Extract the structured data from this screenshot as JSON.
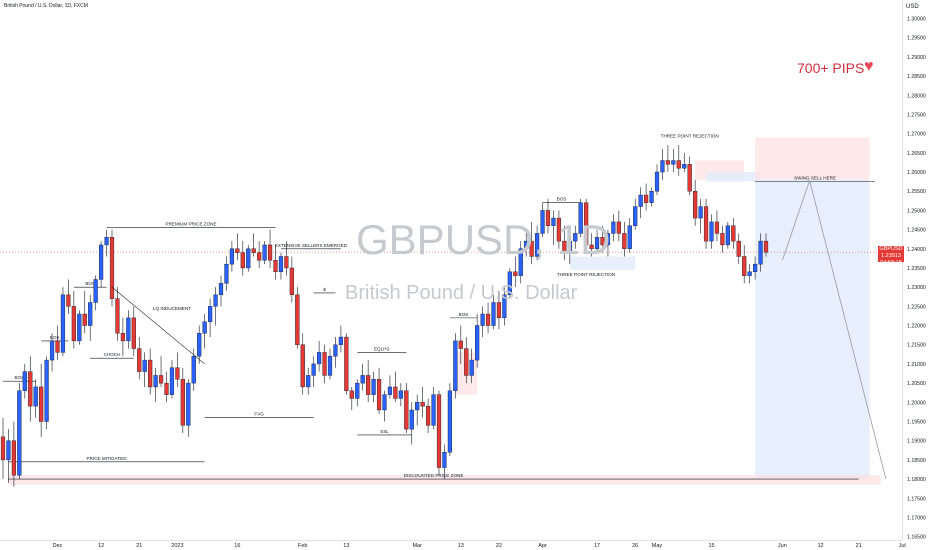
{
  "header": {
    "title": "British Pound / U.S. Dollar, 1D, FXCM",
    "currency": "USD"
  },
  "watermark": {
    "symbol": "GBPUSD, 1D",
    "description": "British Pound / U.S. Dollar"
  },
  "promo": {
    "text": "700+ PIPS",
    "icon": "heart-icon"
  },
  "price_tag": {
    "symbol": "GBPUSD",
    "price": "1.23913",
    "countdown": "04:58:18"
  },
  "colors": {
    "up": "#2962ff",
    "down": "#e53935",
    "annotation": "#131722",
    "supply_zone": "#fde4e6",
    "demand_zone": "#e3ecfb"
  },
  "chart_data": {
    "type": "candlestick",
    "title": "British Pound / U.S. Dollar, 1D, FXCM",
    "y_unit": "USD",
    "ylim": [
      1.16318,
      1.30337
    ],
    "y_ticks": [
      "1.30000",
      "1.29500",
      "1.29000",
      "1.28500",
      "1.28000",
      "1.27500",
      "1.27000",
      "1.26500",
      "1.26000",
      "1.25500",
      "1.25000",
      "1.24500",
      "1.24000",
      "1.23500",
      "1.23000",
      "1.22500",
      "1.22000",
      "1.21500",
      "1.21000",
      "1.20500",
      "1.20000",
      "1.19500",
      "1.19000",
      "1.18500",
      "1.18000",
      "1.17500",
      "1.17000",
      "1.16500"
    ],
    "x_ticks": [
      {
        "label": "Dec",
        "bar": 10
      },
      {
        "label": "12",
        "bar": 18
      },
      {
        "label": "21",
        "bar": 25
      },
      {
        "label": "2023",
        "bar": 32
      },
      {
        "label": "16",
        "bar": 43
      },
      {
        "label": "Feb",
        "bar": 55
      },
      {
        "label": "13",
        "bar": 63
      },
      {
        "label": "Mar",
        "bar": 76
      },
      {
        "label": "13",
        "bar": 84
      },
      {
        "label": "22",
        "bar": 91
      },
      {
        "label": "Apr",
        "bar": 99
      },
      {
        "label": "17",
        "bar": 109
      },
      {
        "label": "26",
        "bar": 116
      },
      {
        "label": "May",
        "bar": 120
      },
      {
        "label": "15",
        "bar": 130
      },
      {
        "label": "Jun",
        "bar": 143
      },
      {
        "label": "12",
        "bar": 150
      },
      {
        "label": "21",
        "bar": 157
      },
      {
        "label": "Jul",
        "bar": 165
      }
    ],
    "current_price": 1.23913,
    "candles": [
      [
        1.191,
        1.196,
        1.18,
        1.185
      ],
      [
        1.185,
        1.193,
        1.179,
        1.19
      ],
      [
        1.19,
        1.195,
        1.178,
        1.181
      ],
      [
        1.181,
        1.205,
        1.18,
        1.203
      ],
      [
        1.203,
        1.21,
        1.201,
        1.208
      ],
      [
        1.208,
        1.212,
        1.195,
        1.199
      ],
      [
        1.199,
        1.206,
        1.196,
        1.204
      ],
      [
        1.204,
        1.21,
        1.191,
        1.195
      ],
      [
        1.195,
        1.212,
        1.193,
        1.211
      ],
      [
        1.211,
        1.218,
        1.208,
        1.216
      ],
      [
        1.216,
        1.22,
        1.211,
        1.213
      ],
      [
        1.213,
        1.23,
        1.212,
        1.228
      ],
      [
        1.228,
        1.232,
        1.223,
        1.225
      ],
      [
        1.225,
        1.229,
        1.214,
        1.216
      ],
      [
        1.216,
        1.224,
        1.215,
        1.223
      ],
      [
        1.223,
        1.229,
        1.218,
        1.22
      ],
      [
        1.22,
        1.228,
        1.216,
        1.226
      ],
      [
        1.226,
        1.233,
        1.224,
        1.232
      ],
      [
        1.232,
        1.242,
        1.23,
        1.241
      ],
      [
        1.241,
        1.245,
        1.238,
        1.243
      ],
      [
        1.243,
        1.245,
        1.225,
        1.227
      ],
      [
        1.227,
        1.23,
        1.216,
        1.218
      ],
      [
        1.218,
        1.222,
        1.212,
        1.216
      ],
      [
        1.216,
        1.224,
        1.214,
        1.222
      ],
      [
        1.222,
        1.225,
        1.212,
        1.214
      ],
      [
        1.214,
        1.217,
        1.206,
        1.208
      ],
      [
        1.208,
        1.213,
        1.204,
        1.211
      ],
      [
        1.211,
        1.214,
        1.202,
        1.204
      ],
      [
        1.204,
        1.209,
        1.2,
        1.207
      ],
      [
        1.207,
        1.212,
        1.204,
        1.205
      ],
      [
        1.205,
        1.208,
        1.2,
        1.202
      ],
      [
        1.202,
        1.211,
        1.201,
        1.209
      ],
      [
        1.209,
        1.213,
        1.204,
        1.206
      ],
      [
        1.206,
        1.209,
        1.192,
        1.194
      ],
      [
        1.194,
        1.206,
        1.191,
        1.205
      ],
      [
        1.205,
        1.214,
        1.203,
        1.212
      ],
      [
        1.212,
        1.22,
        1.21,
        1.218
      ],
      [
        1.218,
        1.223,
        1.214,
        1.221
      ],
      [
        1.221,
        1.227,
        1.217,
        1.225
      ],
      [
        1.225,
        1.23,
        1.22,
        1.228
      ],
      [
        1.228,
        1.233,
        1.225,
        1.231
      ],
      [
        1.231,
        1.238,
        1.229,
        1.236
      ],
      [
        1.236,
        1.242,
        1.234,
        1.24
      ],
      [
        1.24,
        1.244,
        1.237,
        1.239
      ],
      [
        1.239,
        1.242,
        1.233,
        1.235
      ],
      [
        1.235,
        1.241,
        1.234,
        1.24
      ],
      [
        1.24,
        1.244,
        1.238,
        1.239
      ],
      [
        1.239,
        1.242,
        1.235,
        1.237
      ],
      [
        1.237,
        1.242,
        1.236,
        1.241
      ],
      [
        1.241,
        1.245,
        1.235,
        1.237
      ],
      [
        1.237,
        1.241,
        1.232,
        1.234
      ],
      [
        1.234,
        1.239,
        1.232,
        1.238
      ],
      [
        1.238,
        1.242,
        1.233,
        1.235
      ],
      [
        1.235,
        1.238,
        1.226,
        1.228
      ],
      [
        1.228,
        1.23,
        1.214,
        1.215
      ],
      [
        1.215,
        1.218,
        1.202,
        1.204
      ],
      [
        1.204,
        1.209,
        1.202,
        1.207
      ],
      [
        1.207,
        1.212,
        1.204,
        1.21
      ],
      [
        1.21,
        1.216,
        1.208,
        1.213
      ],
      [
        1.213,
        1.215,
        1.205,
        1.207
      ],
      [
        1.207,
        1.214,
        1.206,
        1.212
      ],
      [
        1.212,
        1.217,
        1.209,
        1.215
      ],
      [
        1.215,
        1.22,
        1.213,
        1.217
      ],
      [
        1.217,
        1.218,
        1.202,
        1.203
      ],
      [
        1.203,
        1.204,
        1.198,
        1.201
      ],
      [
        1.201,
        1.206,
        1.199,
        1.205
      ],
      [
        1.205,
        1.21,
        1.203,
        1.207
      ],
      [
        1.207,
        1.211,
        1.2,
        1.202
      ],
      [
        1.202,
        1.208,
        1.2,
        1.206
      ],
      [
        1.206,
        1.209,
        1.197,
        1.198
      ],
      [
        1.198,
        1.203,
        1.195,
        1.202
      ],
      [
        1.202,
        1.207,
        1.201,
        1.204
      ],
      [
        1.204,
        1.208,
        1.2,
        1.201
      ],
      [
        1.201,
        1.205,
        1.199,
        1.203
      ],
      [
        1.203,
        1.205,
        1.192,
        1.193
      ],
      [
        1.193,
        1.2,
        1.189,
        1.198
      ],
      [
        1.198,
        1.202,
        1.194,
        1.2
      ],
      [
        1.2,
        1.204,
        1.196,
        1.199
      ],
      [
        1.199,
        1.201,
        1.192,
        1.194
      ],
      [
        1.194,
        1.204,
        1.193,
        1.202
      ],
      [
        1.202,
        1.203,
        1.181,
        1.183
      ],
      [
        1.183,
        1.189,
        1.18,
        1.187
      ],
      [
        1.187,
        1.205,
        1.186,
        1.203
      ],
      [
        1.203,
        1.218,
        1.201,
        1.216
      ],
      [
        1.216,
        1.22,
        1.21,
        1.214
      ],
      [
        1.214,
        1.217,
        1.205,
        1.207
      ],
      [
        1.207,
        1.214,
        1.205,
        1.211
      ],
      [
        1.211,
        1.223,
        1.209,
        1.22
      ],
      [
        1.22,
        1.225,
        1.217,
        1.223
      ],
      [
        1.223,
        1.226,
        1.218,
        1.22
      ],
      [
        1.22,
        1.228,
        1.219,
        1.226
      ],
      [
        1.226,
        1.229,
        1.219,
        1.222
      ],
      [
        1.222,
        1.23,
        1.22,
        1.228
      ],
      [
        1.228,
        1.235,
        1.227,
        1.234
      ],
      [
        1.234,
        1.238,
        1.23,
        1.233
      ],
      [
        1.233,
        1.242,
        1.231,
        1.24
      ],
      [
        1.24,
        1.245,
        1.238,
        1.242
      ],
      [
        1.242,
        1.247,
        1.236,
        1.238
      ],
      [
        1.238,
        1.246,
        1.237,
        1.244
      ],
      [
        1.244,
        1.252,
        1.243,
        1.25
      ],
      [
        1.25,
        1.253,
        1.244,
        1.246
      ],
      [
        1.246,
        1.25,
        1.241,
        1.248
      ],
      [
        1.248,
        1.25,
        1.24,
        1.242
      ],
      [
        1.242,
        1.246,
        1.237,
        1.239
      ],
      [
        1.239,
        1.243,
        1.236,
        1.242
      ],
      [
        1.242,
        1.246,
        1.24,
        1.244
      ],
      [
        1.244,
        1.253,
        1.243,
        1.252
      ],
      [
        1.252,
        1.253,
        1.24,
        1.241
      ],
      [
        1.241,
        1.244,
        1.238,
        1.24
      ],
      [
        1.24,
        1.245,
        1.239,
        1.243
      ],
      [
        1.243,
        1.246,
        1.239,
        1.241
      ],
      [
        1.241,
        1.245,
        1.238,
        1.244
      ],
      [
        1.244,
        1.249,
        1.242,
        1.247
      ],
      [
        1.247,
        1.25,
        1.242,
        1.244
      ],
      [
        1.244,
        1.247,
        1.238,
        1.24
      ],
      [
        1.24,
        1.248,
        1.239,
        1.246
      ],
      [
        1.246,
        1.253,
        1.245,
        1.251
      ],
      [
        1.251,
        1.256,
        1.248,
        1.254
      ],
      [
        1.254,
        1.257,
        1.25,
        1.252
      ],
      [
        1.252,
        1.256,
        1.251,
        1.255
      ],
      [
        1.255,
        1.262,
        1.254,
        1.26
      ],
      [
        1.26,
        1.266,
        1.258,
        1.263
      ],
      [
        1.263,
        1.267,
        1.26,
        1.262
      ],
      [
        1.262,
        1.266,
        1.26,
        1.263
      ],
      [
        1.263,
        1.267,
        1.259,
        1.261
      ],
      [
        1.261,
        1.265,
        1.26,
        1.262
      ],
      [
        1.262,
        1.264,
        1.254,
        1.255
      ],
      [
        1.255,
        1.258,
        1.246,
        1.248
      ],
      [
        1.248,
        1.253,
        1.244,
        1.251
      ],
      [
        1.251,
        1.253,
        1.24,
        1.242
      ],
      [
        1.242,
        1.249,
        1.24,
        1.247
      ],
      [
        1.247,
        1.25,
        1.242,
        1.244
      ],
      [
        1.244,
        1.246,
        1.239,
        1.241
      ],
      [
        1.241,
        1.247,
        1.24,
        1.246
      ],
      [
        1.246,
        1.248,
        1.24,
        1.242
      ],
      [
        1.242,
        1.244,
        1.236,
        1.238
      ],
      [
        1.238,
        1.241,
        1.231,
        1.233
      ],
      [
        1.233,
        1.236,
        1.231,
        1.234
      ],
      [
        1.234,
        1.238,
        1.232,
        1.236
      ],
      [
        1.236,
        1.244,
        1.234,
        1.242
      ],
      [
        1.242,
        1.244,
        1.238,
        1.2391
      ]
    ],
    "levels": [
      {
        "label": "BOS",
        "price": 1.2055,
        "from": 0,
        "to": 6
      },
      {
        "label": "BOS",
        "price": 1.216,
        "from": 7,
        "to": 12
      },
      {
        "label": "BOS",
        "price": 1.23,
        "from": 13,
        "to": 19
      },
      {
        "label": "CHOCH",
        "price": 1.2115,
        "from": 16,
        "to": 24
      },
      {
        "label": "PREMIUM PRICE ZONE",
        "price": 1.2455,
        "from": 19,
        "to": 50
      },
      {
        "label": "EXTENSIVE SELLERS EMERGED",
        "price": 1.24,
        "from": 51,
        "to": 62
      },
      {
        "label": "$",
        "price": 1.2285,
        "from": 57,
        "to": 61
      },
      {
        "label": "FVG",
        "price": 1.196,
        "from": 37,
        "to": 57
      },
      {
        "label": "EQLHS",
        "price": 1.213,
        "from": 65,
        "to": 74
      },
      {
        "label": "SSL",
        "price": 1.1915,
        "from": 65,
        "to": 75
      },
      {
        "label": "BOS",
        "price": 1.222,
        "from": 82,
        "to": 87
      },
      {
        "label": "BOS",
        "price": 1.252,
        "from": 99,
        "to": 106
      },
      {
        "label": "PRICE MITIGATED",
        "price": 1.1845,
        "from": 1,
        "to": 37
      },
      {
        "label": "DISCOUNTED PRICE ZONE",
        "price": 1.18,
        "from": 1,
        "to": 157
      },
      {
        "label": "SWING SELL HERE",
        "price": 1.2575,
        "from": 138,
        "to": 160
      }
    ],
    "annotations": [
      {
        "label": "LQ INDUCEMENT"
      },
      {
        "label": "THREE POINT REJECTION"
      },
      {
        "label": "THREE POINT REJECTION"
      },
      {
        "label": "SWING SELL HERE"
      }
    ],
    "zones": [
      {
        "kind": "supply",
        "top": 1.263,
        "bottom": 1.258,
        "from": 127,
        "to": 136
      },
      {
        "kind": "demand",
        "top": 1.26,
        "bottom": 1.2575,
        "from": 129,
        "to": 139
      },
      {
        "kind": "demand",
        "top": 1.238,
        "bottom": 1.2345,
        "from": 104,
        "to": 116
      },
      {
        "kind": "supply",
        "top": 1.213,
        "bottom": 1.202,
        "from": 83,
        "to": 87
      },
      {
        "kind": "supply",
        "top": 1.269,
        "bottom": 1.258,
        "from": 138,
        "to": 159
      },
      {
        "kind": "demand",
        "top": 1.258,
        "bottom": 1.18,
        "from": 138,
        "to": 159
      },
      {
        "kind": "discount",
        "top": 1.181,
        "bottom": 1.1785,
        "from": 1,
        "to": 161
      }
    ],
    "projection": [
      [
        143,
        1.237
      ],
      [
        148,
        1.2578
      ],
      [
        162,
        1.18
      ]
    ]
  }
}
